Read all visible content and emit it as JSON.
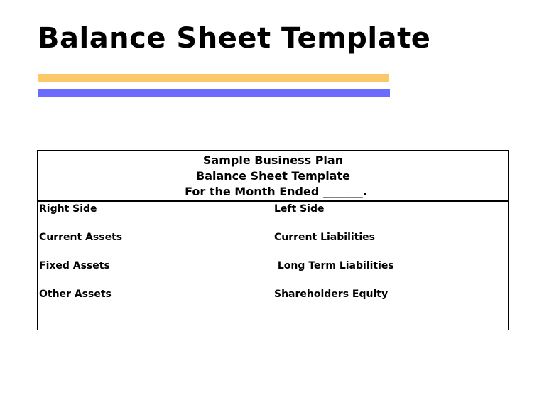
{
  "title": "Balance Sheet Template",
  "colors": {
    "accent_gold": "#FBC96A",
    "accent_blue": "#6B6BFF"
  },
  "sheet": {
    "header": [
      "Sample Business Plan",
      "Balance Sheet Template",
      "For the Month Ended _______."
    ],
    "left_column": {
      "heading": "Right Side",
      "items": [
        "Current Assets",
        "Fixed Assets",
        "Other Assets"
      ]
    },
    "right_column": {
      "heading": "Left Side",
      "items": [
        "Current Liabilities",
        " Long Term Liabilities",
        "Shareholders Equity"
      ]
    }
  }
}
